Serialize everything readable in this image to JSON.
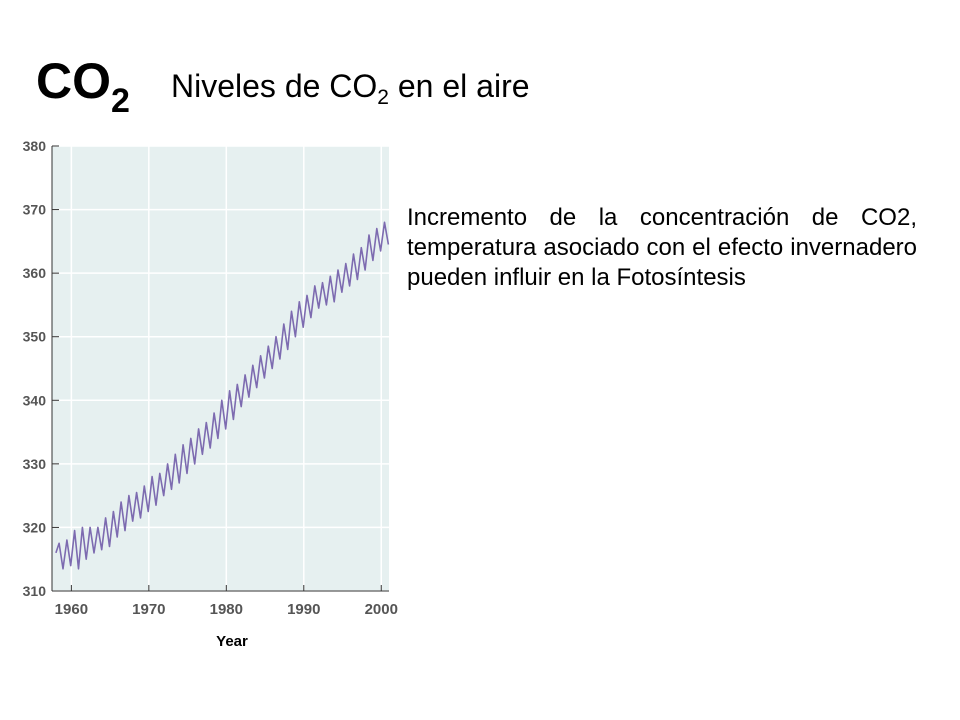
{
  "slide": {
    "symbol_main": "CO",
    "symbol_sub": "2",
    "subtitle_pre": "Niveles de CO",
    "subtitle_sub": "2",
    "subtitle_post": " en el aire",
    "description": "Incremento de la concentración de CO2,  temperatura asociado con el efecto invernadero pueden influir en la Fotosíntesis"
  },
  "colors": {
    "plot_background": "#e6f0f0",
    "line": "#7d6bb0",
    "grid": "#ffffff",
    "axis": "#333333",
    "tick_text": "#555555"
  },
  "chart_data": {
    "type": "line",
    "title": "",
    "xlabel": "Year",
    "ylabel": "",
    "xlim": [
      1957.5,
      2001
    ],
    "ylim": [
      310,
      380
    ],
    "x_ticks": [
      1960,
      1970,
      1980,
      1990,
      2000
    ],
    "y_ticks": [
      310,
      320,
      330,
      340,
      350,
      360,
      370,
      380
    ],
    "grid": true,
    "series": [
      {
        "values_description_note": "",
        "x": [
          1958.0,
          1958.42,
          1958.92,
          1959.42,
          1959.92,
          1960.42,
          1960.92,
          1961.42,
          1961.92,
          1962.42,
          1962.92,
          1963.42,
          1963.92,
          1964.42,
          1964.92,
          1965.42,
          1965.92,
          1966.42,
          1966.92,
          1967.42,
          1967.92,
          1968.42,
          1968.92,
          1969.42,
          1969.92,
          1970.42,
          1970.92,
          1971.42,
          1971.92,
          1972.42,
          1972.92,
          1973.42,
          1973.92,
          1974.42,
          1974.92,
          1975.42,
          1975.92,
          1976.42,
          1976.92,
          1977.42,
          1977.92,
          1978.42,
          1978.92,
          1979.42,
          1979.92,
          1980.42,
          1980.92,
          1981.42,
          1981.92,
          1982.42,
          1982.92,
          1983.42,
          1983.92,
          1984.42,
          1984.92,
          1985.42,
          1985.92,
          1986.42,
          1986.92,
          1987.42,
          1987.92,
          1988.42,
          1988.92,
          1989.42,
          1989.92,
          1990.42,
          1990.92,
          1991.42,
          1991.92,
          1992.42,
          1992.92,
          1993.42,
          1993.92,
          1994.42,
          1994.92,
          1995.42,
          1995.92,
          1996.42,
          1996.92,
          1997.42,
          1997.92,
          1998.42,
          1998.92,
          1999.42,
          1999.92,
          2000.42,
          2000.92
        ],
        "y": [
          316.0,
          317.5,
          313.5,
          318.0,
          314.0,
          319.5,
          313.5,
          320.0,
          315.0,
          320.0,
          316.0,
          320.0,
          316.5,
          321.5,
          317.0,
          322.5,
          318.5,
          324.0,
          319.5,
          325.0,
          321.0,
          325.5,
          321.5,
          326.5,
          322.5,
          328.0,
          323.5,
          328.5,
          325.0,
          330.0,
          326.0,
          331.5,
          327.0,
          333.0,
          328.5,
          334.0,
          330.0,
          335.5,
          331.5,
          336.5,
          332.5,
          338.0,
          334.0,
          340.0,
          335.5,
          341.5,
          337.0,
          342.5,
          339.0,
          344.0,
          340.5,
          345.5,
          342.0,
          347.0,
          343.5,
          348.5,
          345.0,
          350.0,
          346.5,
          352.0,
          348.0,
          354.0,
          350.0,
          355.5,
          351.5,
          356.5,
          353.0,
          358.0,
          354.5,
          358.5,
          355.0,
          359.5,
          355.5,
          360.5,
          357.0,
          361.5,
          358.0,
          363.0,
          359.0,
          364.0,
          360.5,
          366.0,
          362.0,
          367.0,
          363.5,
          368.0,
          364.5
        ]
      }
    ]
  }
}
